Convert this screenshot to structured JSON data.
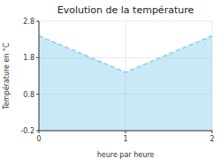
{
  "chart_data": {
    "type": "area",
    "title": "Evolution de la température",
    "xlabel": "heure par heure",
    "ylabel": "Température en °C",
    "x": [
      0,
      1,
      2
    ],
    "values": [
      2.4,
      1.4,
      2.4
    ],
    "color": "#87CEEB",
    "line_style": "dashed",
    "xlim": [
      0,
      2
    ],
    "ylim": [
      -0.2,
      2.8
    ],
    "xticks": [
      0,
      1,
      2
    ],
    "yticks": [
      -0.2,
      0.8,
      1.8,
      2.8
    ],
    "grid": true
  }
}
